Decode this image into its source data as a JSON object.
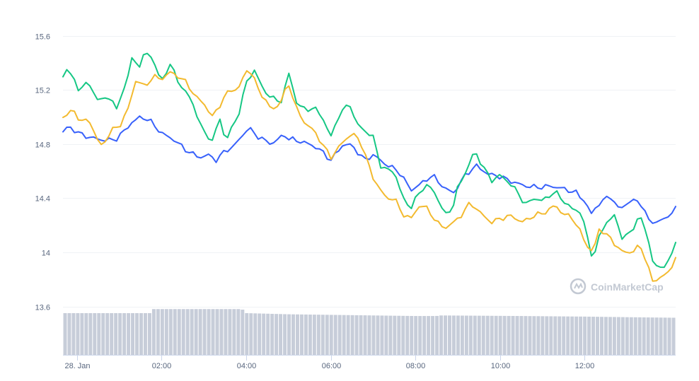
{
  "watermark": {
    "text": "CoinMarketCap"
  },
  "chart_data": {
    "type": "line",
    "y_ticks": [
      "15.6",
      "15.2",
      "14.8",
      "14.4",
      "14",
      "13.6"
    ],
    "y_tick_values": [
      15.6,
      15.2,
      14.8,
      14.4,
      14.0,
      13.6
    ],
    "ylim": [
      13.53,
      15.77
    ],
    "x_ticks": [
      "28. Jan",
      "02:00",
      "04:00",
      "06:00",
      "08:00",
      "10:00",
      "12:00"
    ],
    "x_tick_hours": [
      0,
      2,
      4,
      6,
      8,
      10,
      12
    ],
    "xlim": [
      -0.33,
      14.15
    ],
    "grid": true,
    "legend": "none",
    "series": [
      {
        "color": "#3861fb",
        "keypoints": [
          [
            -0.33,
            14.89
          ],
          [
            -0.2,
            14.93
          ],
          [
            0.1,
            14.87
          ],
          [
            0.3,
            14.85
          ],
          [
            0.6,
            14.83
          ],
          [
            0.9,
            14.83
          ],
          [
            1.1,
            14.89
          ],
          [
            1.3,
            14.96
          ],
          [
            1.5,
            15.0
          ],
          [
            1.7,
            14.98
          ],
          [
            2.0,
            14.88
          ],
          [
            2.3,
            14.83
          ],
          [
            2.6,
            14.75
          ],
          [
            2.9,
            14.7
          ],
          [
            3.1,
            14.72
          ],
          [
            3.3,
            14.68
          ],
          [
            3.5,
            14.75
          ],
          [
            3.7,
            14.78
          ],
          [
            4.05,
            14.92
          ],
          [
            4.3,
            14.85
          ],
          [
            4.6,
            14.8
          ],
          [
            4.9,
            14.87
          ],
          [
            5.0,
            14.84
          ],
          [
            5.4,
            14.81
          ],
          [
            5.7,
            14.77
          ],
          [
            6.0,
            14.68
          ],
          [
            6.3,
            14.8
          ],
          [
            6.5,
            14.79
          ],
          [
            6.8,
            14.68
          ],
          [
            7.0,
            14.72
          ],
          [
            7.3,
            14.65
          ],
          [
            7.6,
            14.6
          ],
          [
            7.9,
            14.46
          ],
          [
            8.1,
            14.5
          ],
          [
            8.4,
            14.57
          ],
          [
            8.7,
            14.47
          ],
          [
            8.9,
            14.44
          ],
          [
            9.2,
            14.58
          ],
          [
            9.45,
            14.64
          ],
          [
            9.7,
            14.58
          ],
          [
            10.0,
            14.56
          ],
          [
            10.3,
            14.52
          ],
          [
            10.6,
            14.49
          ],
          [
            10.9,
            14.48
          ],
          [
            11.2,
            14.49
          ],
          [
            11.5,
            14.47
          ],
          [
            11.8,
            14.44
          ],
          [
            12.0,
            14.38
          ],
          [
            12.15,
            14.28
          ],
          [
            12.3,
            14.35
          ],
          [
            12.6,
            14.42
          ],
          [
            12.8,
            14.32
          ],
          [
            13.1,
            14.38
          ],
          [
            13.3,
            14.38
          ],
          [
            13.5,
            14.24
          ],
          [
            13.7,
            14.22
          ],
          [
            13.9,
            14.25
          ],
          [
            14.15,
            14.32
          ]
        ]
      },
      {
        "color": "#16c784",
        "keypoints": [
          [
            -0.33,
            15.28
          ],
          [
            -0.25,
            15.37
          ],
          [
            -0.1,
            15.3
          ],
          [
            0.05,
            15.18
          ],
          [
            0.2,
            15.27
          ],
          [
            0.4,
            15.17
          ],
          [
            0.6,
            15.12
          ],
          [
            0.8,
            15.15
          ],
          [
            0.95,
            15.05
          ],
          [
            1.1,
            15.2
          ],
          [
            1.3,
            15.42
          ],
          [
            1.5,
            15.38
          ],
          [
            1.6,
            15.48
          ],
          [
            1.8,
            15.43
          ],
          [
            2.0,
            15.25
          ],
          [
            2.2,
            15.4
          ],
          [
            2.4,
            15.25
          ],
          [
            2.6,
            15.18
          ],
          [
            2.8,
            15.05
          ],
          [
            3.0,
            14.88
          ],
          [
            3.2,
            14.83
          ],
          [
            3.4,
            15.0
          ],
          [
            3.5,
            14.82
          ],
          [
            3.8,
            15.0
          ],
          [
            4.0,
            15.25
          ],
          [
            4.2,
            15.35
          ],
          [
            4.4,
            15.2
          ],
          [
            4.7,
            15.12
          ],
          [
            4.85,
            15.12
          ],
          [
            5.0,
            15.33
          ],
          [
            5.2,
            15.1
          ],
          [
            5.4,
            15.05
          ],
          [
            5.6,
            15.07
          ],
          [
            5.8,
            15.0
          ],
          [
            6.0,
            14.85
          ],
          [
            6.2,
            15.02
          ],
          [
            6.45,
            15.1
          ],
          [
            6.6,
            14.95
          ],
          [
            6.8,
            14.9
          ],
          [
            7.0,
            14.85
          ],
          [
            7.2,
            14.62
          ],
          [
            7.5,
            14.6
          ],
          [
            7.7,
            14.4
          ],
          [
            7.9,
            14.33
          ],
          [
            8.1,
            14.45
          ],
          [
            8.3,
            14.5
          ],
          [
            8.5,
            14.42
          ],
          [
            8.7,
            14.27
          ],
          [
            8.9,
            14.35
          ],
          [
            9.0,
            14.48
          ],
          [
            9.2,
            14.6
          ],
          [
            9.4,
            14.75
          ],
          [
            9.6,
            14.63
          ],
          [
            9.8,
            14.53
          ],
          [
            10.0,
            14.57
          ],
          [
            10.2,
            14.52
          ],
          [
            10.4,
            14.45
          ],
          [
            10.6,
            14.35
          ],
          [
            10.8,
            14.4
          ],
          [
            11.0,
            14.38
          ],
          [
            11.3,
            14.45
          ],
          [
            11.5,
            14.38
          ],
          [
            11.7,
            14.32
          ],
          [
            11.9,
            14.3
          ],
          [
            12.0,
            14.2
          ],
          [
            12.1,
            14.05
          ],
          [
            12.2,
            13.95
          ],
          [
            12.35,
            14.12
          ],
          [
            12.5,
            14.22
          ],
          [
            12.7,
            14.27
          ],
          [
            12.9,
            14.1
          ],
          [
            13.1,
            14.15
          ],
          [
            13.3,
            14.28
          ],
          [
            13.5,
            14.1
          ],
          [
            13.65,
            13.88
          ],
          [
            13.85,
            13.9
          ],
          [
            14.0,
            13.93
          ],
          [
            14.15,
            14.08
          ]
        ]
      },
      {
        "color": "#f3ba2f",
        "keypoints": [
          [
            -0.33,
            15.0
          ],
          [
            -0.1,
            15.05
          ],
          [
            0.1,
            14.97
          ],
          [
            0.3,
            14.97
          ],
          [
            0.5,
            14.82
          ],
          [
            0.6,
            14.78
          ],
          [
            0.8,
            14.9
          ],
          [
            1.0,
            14.93
          ],
          [
            1.2,
            15.05
          ],
          [
            1.4,
            15.28
          ],
          [
            1.6,
            15.22
          ],
          [
            1.8,
            15.3
          ],
          [
            2.0,
            15.28
          ],
          [
            2.2,
            15.33
          ],
          [
            2.4,
            15.3
          ],
          [
            2.6,
            15.25
          ],
          [
            2.8,
            15.15
          ],
          [
            3.0,
            15.1
          ],
          [
            3.2,
            15.0
          ],
          [
            3.4,
            15.1
          ],
          [
            3.6,
            15.2
          ],
          [
            3.8,
            15.2
          ],
          [
            4.05,
            15.37
          ],
          [
            4.3,
            15.2
          ],
          [
            4.6,
            15.05
          ],
          [
            4.8,
            15.1
          ],
          [
            5.0,
            15.25
          ],
          [
            5.2,
            15.05
          ],
          [
            5.4,
            14.95
          ],
          [
            5.6,
            14.9
          ],
          [
            5.8,
            14.8
          ],
          [
            6.0,
            14.7
          ],
          [
            6.3,
            14.82
          ],
          [
            6.5,
            14.88
          ],
          [
            6.7,
            14.82
          ],
          [
            7.0,
            14.55
          ],
          [
            7.3,
            14.4
          ],
          [
            7.5,
            14.4
          ],
          [
            7.7,
            14.28
          ],
          [
            7.9,
            14.25
          ],
          [
            8.1,
            14.35
          ],
          [
            8.3,
            14.32
          ],
          [
            8.5,
            14.22
          ],
          [
            8.7,
            14.18
          ],
          [
            8.9,
            14.22
          ],
          [
            9.1,
            14.28
          ],
          [
            9.3,
            14.37
          ],
          [
            9.5,
            14.3
          ],
          [
            9.8,
            14.22
          ],
          [
            10.0,
            14.25
          ],
          [
            10.3,
            14.27
          ],
          [
            10.5,
            14.22
          ],
          [
            10.8,
            14.27
          ],
          [
            11.1,
            14.3
          ],
          [
            11.3,
            14.35
          ],
          [
            11.5,
            14.28
          ],
          [
            11.7,
            14.26
          ],
          [
            11.9,
            14.15
          ],
          [
            12.05,
            14.05
          ],
          [
            12.2,
            14.0
          ],
          [
            12.35,
            14.18
          ],
          [
            12.55,
            14.12
          ],
          [
            12.75,
            14.05
          ],
          [
            12.9,
            14.0
          ],
          [
            13.1,
            14.0
          ],
          [
            13.3,
            14.05
          ],
          [
            13.45,
            13.95
          ],
          [
            13.6,
            13.78
          ],
          [
            13.8,
            13.82
          ],
          [
            14.0,
            13.85
          ],
          [
            14.15,
            13.97
          ]
        ]
      }
    ],
    "volume": {
      "color": "#c7cdd9",
      "bar_count": 145,
      "levels": [
        [
          -0.33,
          0.72
        ],
        [
          1.75,
          0.72
        ],
        [
          1.8,
          0.79
        ],
        [
          3.9,
          0.79
        ],
        [
          4.0,
          0.72
        ],
        [
          5.0,
          0.7
        ],
        [
          7.0,
          0.68
        ],
        [
          8.0,
          0.67
        ],
        [
          8.5,
          0.67
        ],
        [
          8.55,
          0.68
        ],
        [
          10.5,
          0.67
        ],
        [
          12.0,
          0.66
        ],
        [
          13.0,
          0.65
        ],
        [
          14.15,
          0.64
        ]
      ]
    }
  }
}
